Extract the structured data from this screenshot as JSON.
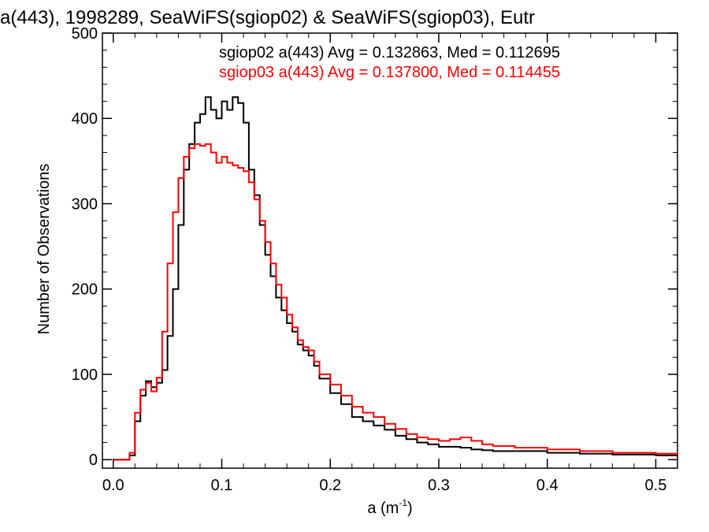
{
  "chart_data": {
    "type": "line",
    "title": "a(443), 1998289, SeaWiFS(sgiop02) & SeaWiFS(sgiop03), Eutr",
    "xlabel": "a (m",
    "xlabel_sup": "-1",
    "xlabel_close": ")",
    "ylabel": "Number of Observations",
    "xlim": [
      -0.01,
      0.52
    ],
    "ylim": [
      -10,
      500
    ],
    "xticks": [
      0.0,
      0.1,
      0.2,
      0.3,
      0.4,
      0.5
    ],
    "xtick_labels": [
      "0.0",
      "0.1",
      "0.2",
      "0.3",
      "0.4",
      "0.5"
    ],
    "yticks": [
      0,
      100,
      200,
      300,
      400,
      500
    ],
    "ytick_labels": [
      "0",
      "100",
      "200",
      "300",
      "400",
      "500"
    ],
    "grid": false,
    "annotations": [
      "sgiop02 a(443) Avg = 0.132863, Med = 0.112695",
      "sgiop03 a(443) Avg = 0.137800, Med = 0.114455"
    ],
    "x": [
      0.0,
      0.01,
      0.015,
      0.02,
      0.025,
      0.03,
      0.035,
      0.04,
      0.045,
      0.05,
      0.055,
      0.06,
      0.065,
      0.07,
      0.075,
      0.08,
      0.085,
      0.09,
      0.095,
      0.1,
      0.105,
      0.11,
      0.115,
      0.12,
      0.125,
      0.13,
      0.135,
      0.14,
      0.145,
      0.15,
      0.155,
      0.16,
      0.165,
      0.17,
      0.175,
      0.18,
      0.185,
      0.19,
      0.2,
      0.21,
      0.22,
      0.23,
      0.24,
      0.25,
      0.26,
      0.27,
      0.28,
      0.29,
      0.3,
      0.31,
      0.32,
      0.33,
      0.34,
      0.35,
      0.37,
      0.4,
      0.43,
      0.46,
      0.5,
      0.52
    ],
    "series": [
      {
        "color": "#000000",
        "values": [
          0,
          0,
          5,
          45,
          75,
          92,
          85,
          90,
          105,
          145,
          200,
          275,
          340,
          370,
          395,
          405,
          425,
          410,
          400,
          420,
          410,
          425,
          418,
          395,
          340,
          310,
          275,
          240,
          215,
          190,
          175,
          160,
          150,
          135,
          128,
          122,
          110,
          95,
          78,
          65,
          50,
          45,
          40,
          35,
          28,
          24,
          20,
          18,
          15,
          15,
          14,
          12,
          11,
          10,
          10,
          8,
          7,
          6,
          5,
          5
        ]
      },
      {
        "color": "#ff0000",
        "values": [
          0,
          0,
          8,
          55,
          82,
          90,
          80,
          96,
          150,
          230,
          290,
          330,
          355,
          365,
          370,
          368,
          370,
          360,
          348,
          355,
          348,
          345,
          342,
          338,
          325,
          305,
          280,
          255,
          230,
          205,
          190,
          170,
          155,
          140,
          132,
          128,
          115,
          100,
          88,
          75,
          62,
          55,
          50,
          42,
          36,
          30,
          26,
          24,
          22,
          24,
          26,
          22,
          18,
          16,
          14,
          12,
          10,
          8,
          7,
          6
        ]
      }
    ]
  }
}
